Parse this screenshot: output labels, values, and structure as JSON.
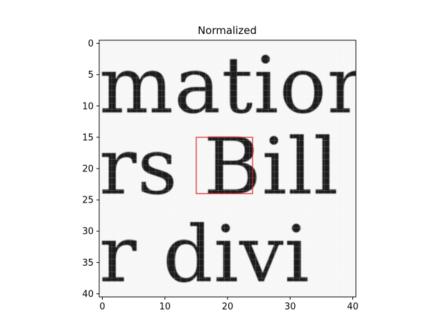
{
  "chart_data": {
    "type": "heatmap",
    "title": "Normalized",
    "xlabel": "",
    "ylabel": "",
    "colormap": "gray",
    "xlim": [
      -0.5,
      40.5
    ],
    "ylim": [
      40.5,
      -0.5
    ],
    "x_ticks": [
      0,
      10,
      20,
      30,
      40
    ],
    "y_ticks": [
      0,
      5,
      10,
      15,
      20,
      25,
      30,
      35,
      40
    ],
    "grid": false,
    "image_text_rows": [
      {
        "text": "mation",
        "baseline": 11
      },
      {
        "text": "rs  Bill",
        "baseline": 24
      },
      {
        "text": "r  divi",
        "baseline": 38
      }
    ],
    "highlight_box": {
      "x0": 15,
      "y0": 15,
      "x1": 24,
      "y1": 24,
      "color": "#e02020"
    }
  }
}
